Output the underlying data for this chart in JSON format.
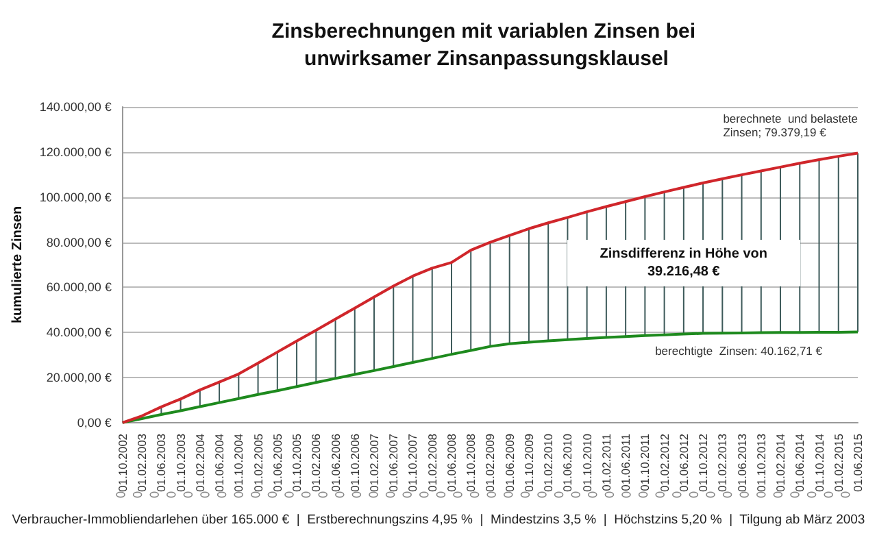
{
  "chart_data": {
    "type": "line",
    "title": "Zinsberechnungen mit variablen Zinsen bei unwirksamer Zinsanpassungsklausel",
    "ylabel": "kumulierte Zinsen",
    "categories": [
      "01.10.2002",
      "01.02.2003",
      "01.06.2003",
      "01.10.2003",
      "01.02.2004",
      "01.06.2004",
      "01.10.2004",
      "01.02.2005",
      "01.06.2005",
      "01.10.2005",
      "01.02.2006",
      "01.06.2006",
      "01.10.2006",
      "01.02.2007",
      "01.06.2007",
      "01.10.2007",
      "01.02.2008",
      "01.06.2008",
      "01.10.2008",
      "01.02.2009",
      "01.06.2009",
      "01.10.2009",
      "01.02.2010",
      "01.06.2010",
      "01.10.2010",
      "01.02.2011",
      "01.06.2011",
      "01.10.2011",
      "01.02.2012",
      "01.06.2012",
      "01.10.2012",
      "01.02.2013",
      "01.06.2013",
      "01.10.2013",
      "01.02.2014",
      "01.06.2014",
      "01.10.2014",
      "01.02.2015",
      "01.06.2015"
    ],
    "series": [
      {
        "color": "#1e8a1e",
        "values": [
          0,
          1800,
          3600,
          5300,
          7100,
          8900,
          10700,
          12500,
          14200,
          16000,
          17800,
          19600,
          21400,
          23100,
          24900,
          26700,
          28500,
          30300,
          32000,
          33800,
          35000,
          35700,
          36300,
          36800,
          37300,
          37800,
          38200,
          38600,
          38900,
          39300,
          39600,
          39700,
          39800,
          39900,
          40000,
          40000,
          40100,
          40100,
          40200
        ],
        "errors": [
          null,
          [
            1800,
            3000
          ],
          [
            3600,
            7000
          ],
          [
            5300,
            10500
          ],
          [
            7100,
            14500
          ],
          [
            8900,
            18000
          ],
          [
            10700,
            21600
          ],
          [
            12500,
            26400
          ],
          [
            14200,
            31300
          ],
          [
            16000,
            36200
          ],
          [
            17800,
            41000
          ],
          [
            19600,
            45900
          ],
          [
            21400,
            50800
          ],
          [
            23100,
            55700
          ],
          [
            24900,
            60600
          ],
          [
            26700,
            65000
          ],
          [
            28500,
            68500
          ],
          [
            30300,
            71000
          ],
          [
            32000,
            76500
          ],
          [
            33800,
            80000
          ],
          [
            35000,
            83000
          ],
          [
            35700,
            86000
          ],
          [
            36300,
            88600
          ],
          [
            36800,
            91000
          ],
          [
            37300,
            93500
          ],
          [
            37800,
            95800
          ],
          [
            38200,
            98000
          ],
          [
            38600,
            100200
          ],
          [
            38900,
            102300
          ],
          [
            39300,
            104300
          ],
          [
            39600,
            106300
          ],
          [
            39700,
            108100
          ],
          [
            39800,
            109900
          ],
          [
            39900,
            111600
          ],
          [
            40000,
            113300
          ],
          [
            40000,
            115000
          ],
          [
            40100,
            116600
          ],
          [
            40100,
            118100
          ],
          [
            40200,
            119500
          ]
        ]
      },
      {
        "color": "#d0262b",
        "values": [
          0,
          3000,
          7000,
          10500,
          14500,
          18000,
          21600,
          26400,
          31300,
          36200,
          41000,
          45900,
          50800,
          55700,
          60600,
          65000,
          68500,
          71000,
          76500,
          80000,
          83000,
          86000,
          88600,
          91000,
          93500,
          95800,
          98000,
          100200,
          102300,
          104300,
          106300,
          108100,
          109900,
          111600,
          113300,
          115000,
          116600,
          118100,
          119500
        ]
      }
    ],
    "ylim": [
      0,
      140000
    ],
    "yticks": [
      {
        "value": 0,
        "label": "0,00 €"
      },
      {
        "value": 20000,
        "label": "20.000,00 €"
      },
      {
        "value": 40000,
        "label": "40.000,00 €"
      },
      {
        "value": 60000,
        "label": "60.000,00 €"
      },
      {
        "value": 80000,
        "label": "80.000,00 €"
      },
      {
        "value": 100000,
        "label": "100.000,00 €"
      },
      {
        "value": 120000,
        "label": "120.000,00 €"
      },
      {
        "value": 140000,
        "label": "140.000,00 €"
      }
    ],
    "grid": "y",
    "marker": "none",
    "line_style": "solid",
    "annotations": [
      "berechnete  und belastete\nZinsen; 79.379,19 €",
      "berechtigte  Zinsen: 40.162,71 €",
      "Zinsdifferenz in Höhe von\n39.216,48 €",
      "Verbraucher-Immobliendarlehen über 165.000 €  |  Erstberechnungszins 4,95 %  |  Mindestzins 3,5 %  |  Höchstzins 5,20 %  |  Tilgung ab März 2003"
    ]
  }
}
